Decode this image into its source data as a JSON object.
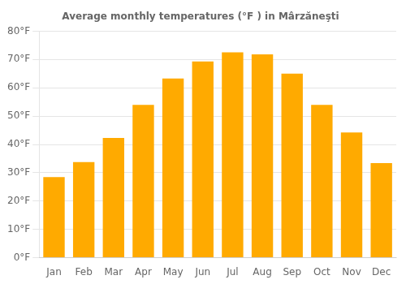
{
  "chart_data": {
    "type": "bar",
    "title": "Average monthly temperatures (°F ) in Mârzăneşti",
    "categories": [
      "Jan",
      "Feb",
      "Mar",
      "Apr",
      "May",
      "Jun",
      "Jul",
      "Aug",
      "Sep",
      "Oct",
      "Nov",
      "Dec"
    ],
    "values": [
      28.5,
      33.8,
      42.3,
      54.0,
      63.3,
      69.3,
      72.5,
      71.8,
      65.0,
      54.0,
      44.2,
      33.4
    ],
    "color": "#FFAA00",
    "ylim": [
      0,
      80
    ],
    "yticks": [
      {
        "value": 0,
        "label": "0°F"
      },
      {
        "value": 10,
        "label": "10°F"
      },
      {
        "value": 20,
        "label": "20°F"
      },
      {
        "value": 30,
        "label": "30°F"
      },
      {
        "value": 40,
        "label": "40°F"
      },
      {
        "value": 50,
        "label": "50°F"
      },
      {
        "value": 60,
        "label": "60°F"
      },
      {
        "value": 70,
        "label": "70°F"
      },
      {
        "value": 80,
        "label": "80°F"
      }
    ],
    "grid": true
  }
}
